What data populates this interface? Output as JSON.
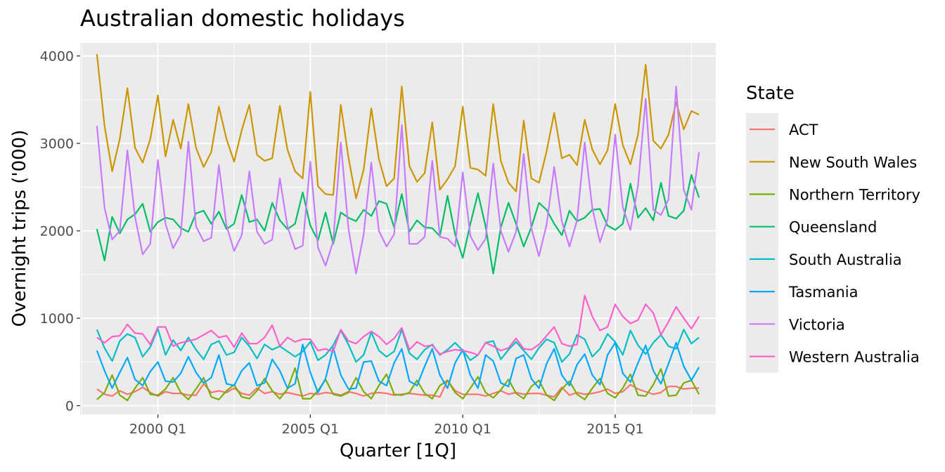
{
  "chart_data": {
    "type": "line",
    "title": "Australian domestic holidays",
    "xlabel": "Quarter [1Q]",
    "ylabel": "Overnight trips ('000)",
    "x_start": "1998 Q1",
    "x_end": "2017 Q4",
    "xlim": [
      1997.45,
      2018.3
    ],
    "ylim": [
      -100,
      4150
    ],
    "x_ticks": [
      {
        "label": "2000 Q1",
        "value": 2000.0
      },
      {
        "label": "2005 Q1",
        "value": 2005.0
      },
      {
        "label": "2010 Q1",
        "value": 2010.0
      },
      {
        "label": "2015 Q1",
        "value": 2015.0
      }
    ],
    "y_ticks": [
      {
        "label": "0",
        "value": 0
      },
      {
        "label": "1000",
        "value": 1000
      },
      {
        "label": "2000",
        "value": 2000
      },
      {
        "label": "3000",
        "value": 3000
      },
      {
        "label": "4000",
        "value": 4000
      }
    ],
    "grid": true,
    "legend": {
      "title": "State",
      "position": "right"
    },
    "series": [
      {
        "name": "ACT",
        "color": "#F8766D",
        "values": [
          190,
          130,
          110,
          170,
          130,
          160,
          210,
          150,
          110,
          160,
          140,
          140,
          120,
          120,
          250,
          150,
          170,
          150,
          200,
          140,
          120,
          200,
          140,
          160,
          130,
          150,
          130,
          110,
          140,
          130,
          150,
          140,
          120,
          160,
          140,
          110,
          140,
          150,
          140,
          120,
          130,
          140,
          130,
          120,
          120,
          100,
          290,
          170,
          130,
          130,
          130,
          110,
          140,
          170,
          130,
          150,
          130,
          140,
          140,
          120,
          100,
          210,
          120,
          150,
          130,
          140,
          160,
          190,
          140,
          160,
          240,
          190,
          160,
          130,
          150,
          220,
          220,
          190,
          200,
          200
        ]
      },
      {
        "name": "New South Wales",
        "color": "#CD9600",
        "values": [
          4020,
          3200,
          2680,
          3050,
          3630,
          2950,
          2780,
          3050,
          3550,
          2850,
          3270,
          2940,
          3450,
          2950,
          2730,
          2900,
          3420,
          3050,
          2790,
          3150,
          3440,
          2870,
          2800,
          2830,
          3430,
          2930,
          2680,
          2600,
          3590,
          2510,
          2420,
          2410,
          3440,
          2840,
          2370,
          2700,
          3400,
          2820,
          2510,
          2600,
          3650,
          2740,
          2560,
          2660,
          3240,
          2470,
          2590,
          2740,
          3420,
          2720,
          2700,
          2630,
          3450,
          2800,
          2550,
          2450,
          3260,
          2600,
          2550,
          2910,
          3350,
          2830,
          2870,
          2750,
          3270,
          2930,
          2760,
          2920,
          3450,
          2980,
          2760,
          3100,
          3900,
          3030,
          2940,
          3100,
          3470,
          3160,
          3370,
          3330
        ]
      },
      {
        "name": "Northern Territory",
        "color": "#7CAE00",
        "values": [
          70,
          150,
          350,
          120,
          60,
          200,
          320,
          130,
          120,
          190,
          320,
          150,
          70,
          190,
          320,
          100,
          70,
          170,
          240,
          100,
          80,
          170,
          310,
          170,
          80,
          190,
          430,
          80,
          80,
          170,
          300,
          130,
          110,
          150,
          320,
          160,
          80,
          230,
          360,
          130,
          120,
          150,
          290,
          140,
          80,
          230,
          290,
          150,
          80,
          200,
          330,
          150,
          90,
          180,
          300,
          140,
          80,
          220,
          290,
          120,
          60,
          190,
          280,
          130,
          70,
          200,
          310,
          140,
          90,
          200,
          360,
          120,
          110,
          240,
          420,
          110,
          120,
          260,
          290,
          130
        ]
      },
      {
        "name": "Queensland",
        "color": "#00BE67",
        "values": [
          2020,
          1660,
          2160,
          1970,
          2130,
          2190,
          2310,
          1990,
          2100,
          2150,
          2130,
          2030,
          1990,
          2200,
          2230,
          2080,
          2220,
          2020,
          2080,
          2410,
          2100,
          2130,
          2000,
          2320,
          2120,
          2020,
          2080,
          2440,
          2060,
          1890,
          2210,
          1850,
          2210,
          2150,
          2110,
          2240,
          2170,
          2340,
          2310,
          2040,
          2420,
          1990,
          2120,
          2040,
          2030,
          1940,
          2400,
          1960,
          1690,
          2080,
          2430,
          2050,
          1510,
          2040,
          2320,
          2080,
          1820,
          2040,
          2320,
          2240,
          2080,
          1950,
          2230,
          2110,
          2150,
          2240,
          2250,
          2060,
          2010,
          2080,
          2540,
          2150,
          2260,
          2120,
          2550,
          2170,
          2140,
          2230,
          2640,
          2380
        ]
      },
      {
        "name": "South Australia",
        "color": "#00BFC4",
        "values": [
          870,
          660,
          510,
          740,
          820,
          780,
          560,
          670,
          880,
          580,
          750,
          630,
          780,
          640,
          530,
          700,
          740,
          580,
          610,
          780,
          680,
          540,
          700,
          640,
          680,
          620,
          560,
          620,
          730,
          520,
          580,
          690,
          860,
          700,
          500,
          580,
          840,
          630,
          560,
          620,
          870,
          600,
          530,
          640,
          700,
          580,
          640,
          720,
          630,
          520,
          580,
          720,
          740,
          530,
          640,
          730,
          630,
          530,
          660,
          760,
          720,
          500,
          590,
          810,
          760,
          560,
          650,
          820,
          730,
          580,
          860,
          690,
          590,
          720,
          810,
          680,
          650,
          870,
          710,
          780
        ]
      },
      {
        "name": "Tasmania",
        "color": "#00A9FF",
        "values": [
          630,
          400,
          200,
          380,
          550,
          300,
          230,
          390,
          500,
          280,
          270,
          370,
          560,
          380,
          260,
          320,
          580,
          250,
          230,
          400,
          490,
          230,
          260,
          530,
          400,
          200,
          250,
          700,
          380,
          150,
          310,
          660,
          350,
          190,
          200,
          500,
          510,
          280,
          230,
          490,
          650,
          280,
          230,
          450,
          650,
          350,
          200,
          490,
          640,
          350,
          200,
          580,
          510,
          260,
          220,
          540,
          580,
          310,
          200,
          480,
          650,
          350,
          230,
          470,
          590,
          350,
          240,
          580,
          720,
          370,
          270,
          490,
          690,
          400,
          250,
          480,
          720,
          450,
          290,
          440
        ]
      },
      {
        "name": "Victoria",
        "color": "#C77CFF",
        "values": [
          3200,
          2260,
          1900,
          2000,
          2920,
          2160,
          1730,
          1850,
          2810,
          2080,
          1800,
          1960,
          3020,
          2050,
          1880,
          1920,
          2750,
          2060,
          1770,
          1950,
          2680,
          1990,
          1850,
          1900,
          2600,
          2050,
          1790,
          1830,
          2790,
          1810,
          1600,
          1880,
          3010,
          2030,
          1510,
          1960,
          2780,
          2000,
          1820,
          1960,
          3210,
          1850,
          1850,
          1930,
          2800,
          1930,
          1910,
          1820,
          2670,
          1940,
          1780,
          1910,
          2770,
          2000,
          1760,
          1990,
          2880,
          2030,
          1710,
          2070,
          2730,
          2110,
          1820,
          2120,
          3010,
          2260,
          1870,
          2130,
          3100,
          2270,
          2010,
          2520,
          3510,
          2240,
          2180,
          2360,
          3650,
          2470,
          2240,
          2900
        ]
      },
      {
        "name": "Western Australia",
        "color": "#FF61CC",
        "values": [
          780,
          720,
          790,
          800,
          930,
          830,
          820,
          700,
          900,
          900,
          680,
          720,
          740,
          760,
          810,
          860,
          780,
          800,
          670,
          830,
          710,
          710,
          780,
          920,
          680,
          780,
          730,
          760,
          760,
          630,
          650,
          620,
          870,
          740,
          710,
          790,
          850,
          790,
          700,
          770,
          890,
          640,
          730,
          680,
          690,
          590,
          620,
          640,
          630,
          610,
          580,
          720,
          680,
          630,
          660,
          770,
          650,
          640,
          700,
          800,
          900,
          710,
          680,
          700,
          1260,
          1020,
          860,
          900,
          1160,
          1020,
          940,
          980,
          1160,
          1060,
          810,
          960,
          1130,
          1000,
          880,
          1020
        ]
      }
    ]
  }
}
